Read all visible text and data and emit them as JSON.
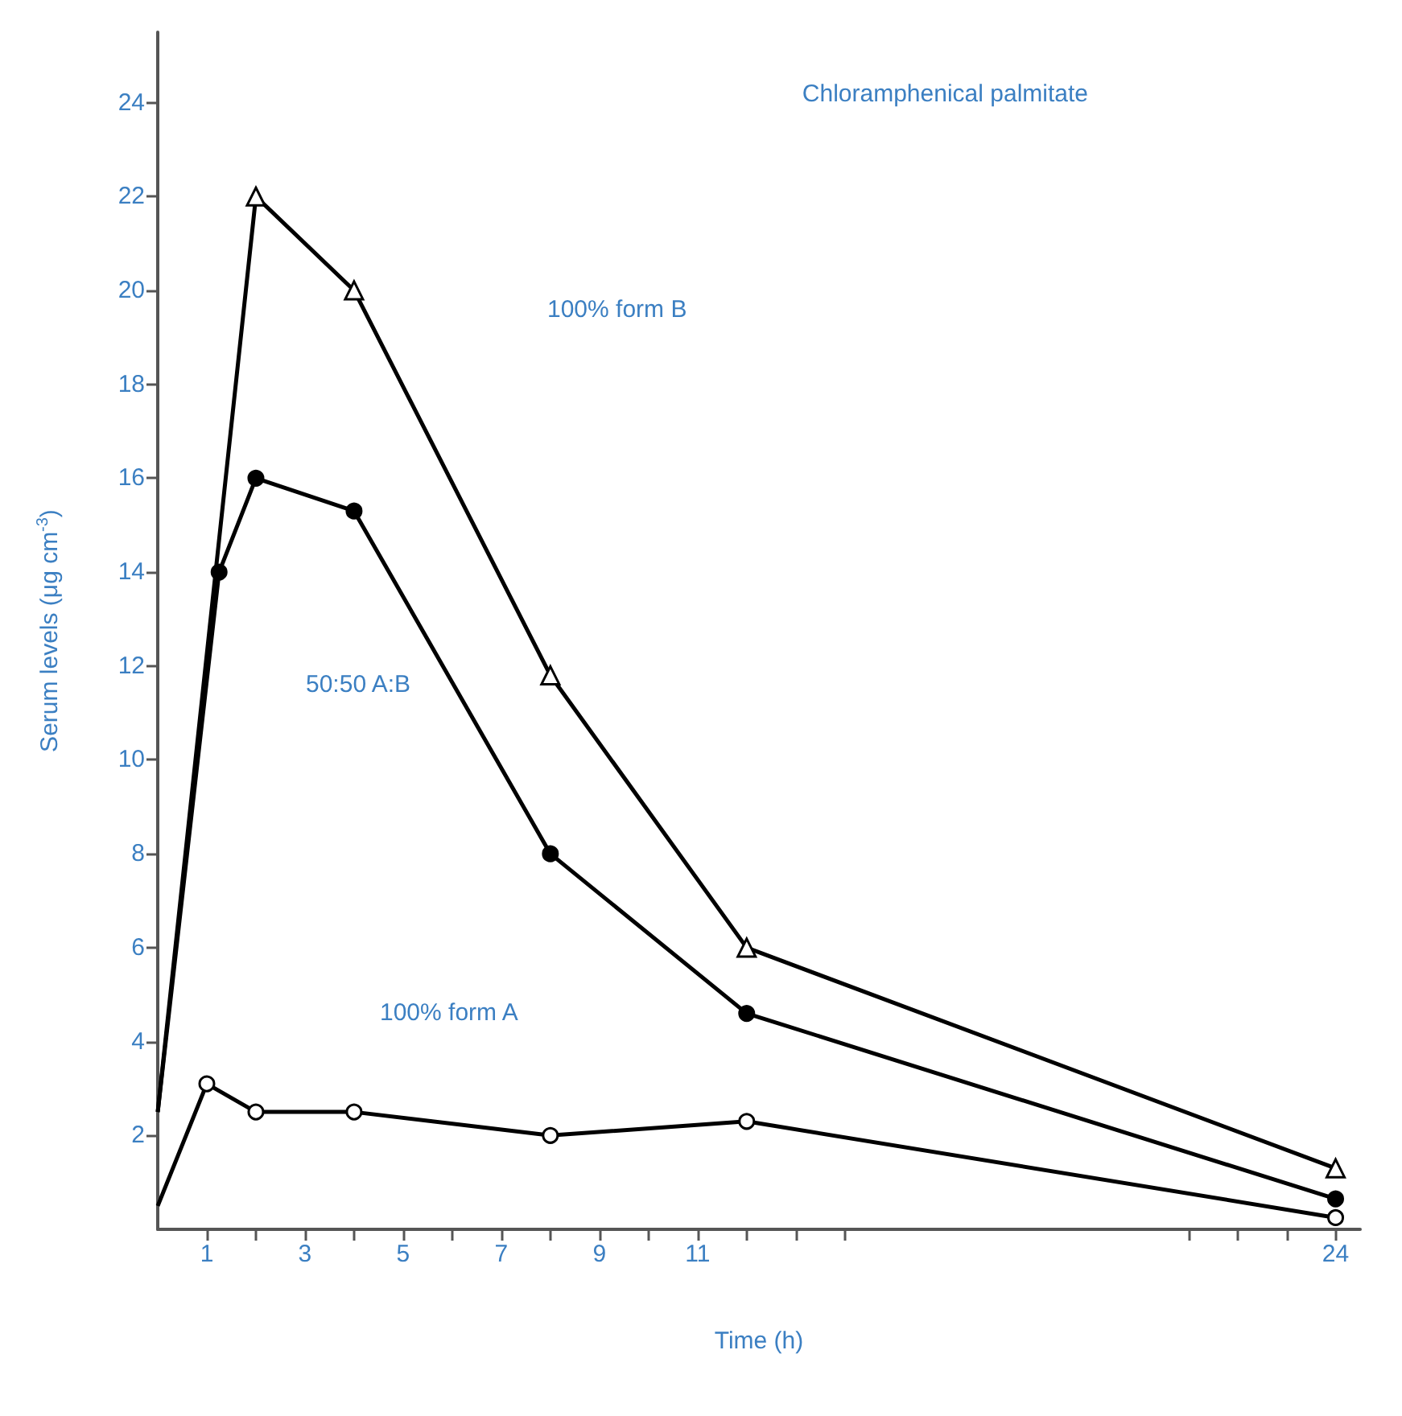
{
  "chart_data": {
    "type": "line",
    "title": "Chloramphenical palmitate",
    "xlabel": "Time (h)",
    "ylabel": "Serum levels (μg cm$^{-3}$)",
    "series": [
      {
        "color": "#000000",
        "marker": "triangle",
        "x": [
          0,
          2,
          4,
          8,
          12,
          24
        ],
        "values": [
          2.5,
          22,
          20,
          11.8,
          6,
          1.3
        ]
      },
      {
        "color": "#000000",
        "marker": "circle",
        "x": [
          0,
          1.25,
          2,
          4,
          8,
          12,
          24
        ],
        "values": [
          2.5,
          14,
          16,
          15.3,
          8,
          4.6,
          0.65
        ]
      },
      {
        "color": "#000000",
        "marker": "circle",
        "x": [
          0,
          1,
          2,
          4,
          8,
          12,
          24
        ],
        "values": [
          0.5,
          3.1,
          2.5,
          2.5,
          2,
          2.3,
          0.25
        ]
      }
    ],
    "annotations": [
      "100% form B",
      "50:50 A:B",
      "100% form A"
    ],
    "xlim": [
      0,
      24.5
    ],
    "ylim": [
      0,
      25.5
    ],
    "xticks": [
      1,
      {
        "value": 2,
        "label": null
      },
      3,
      {
        "value": 4,
        "label": null
      },
      5,
      {
        "value": 6,
        "label": null
      },
      7,
      {
        "value": 8,
        "label": null
      },
      9,
      {
        "value": 10,
        "label": null
      },
      11,
      {
        "value": 12,
        "label": null
      },
      {
        "value": 13,
        "label": null
      },
      {
        "value": 14,
        "label": null
      },
      {
        "value": 21,
        "label": null
      },
      {
        "value": 22,
        "label": null
      },
      {
        "value": 23,
        "label": null
      },
      24
    ],
    "yticks": [
      2,
      4,
      6,
      8,
      10,
      12,
      14,
      16,
      18,
      20,
      22,
      24
    ],
    "grid": false,
    "line_style": "solid"
  }
}
